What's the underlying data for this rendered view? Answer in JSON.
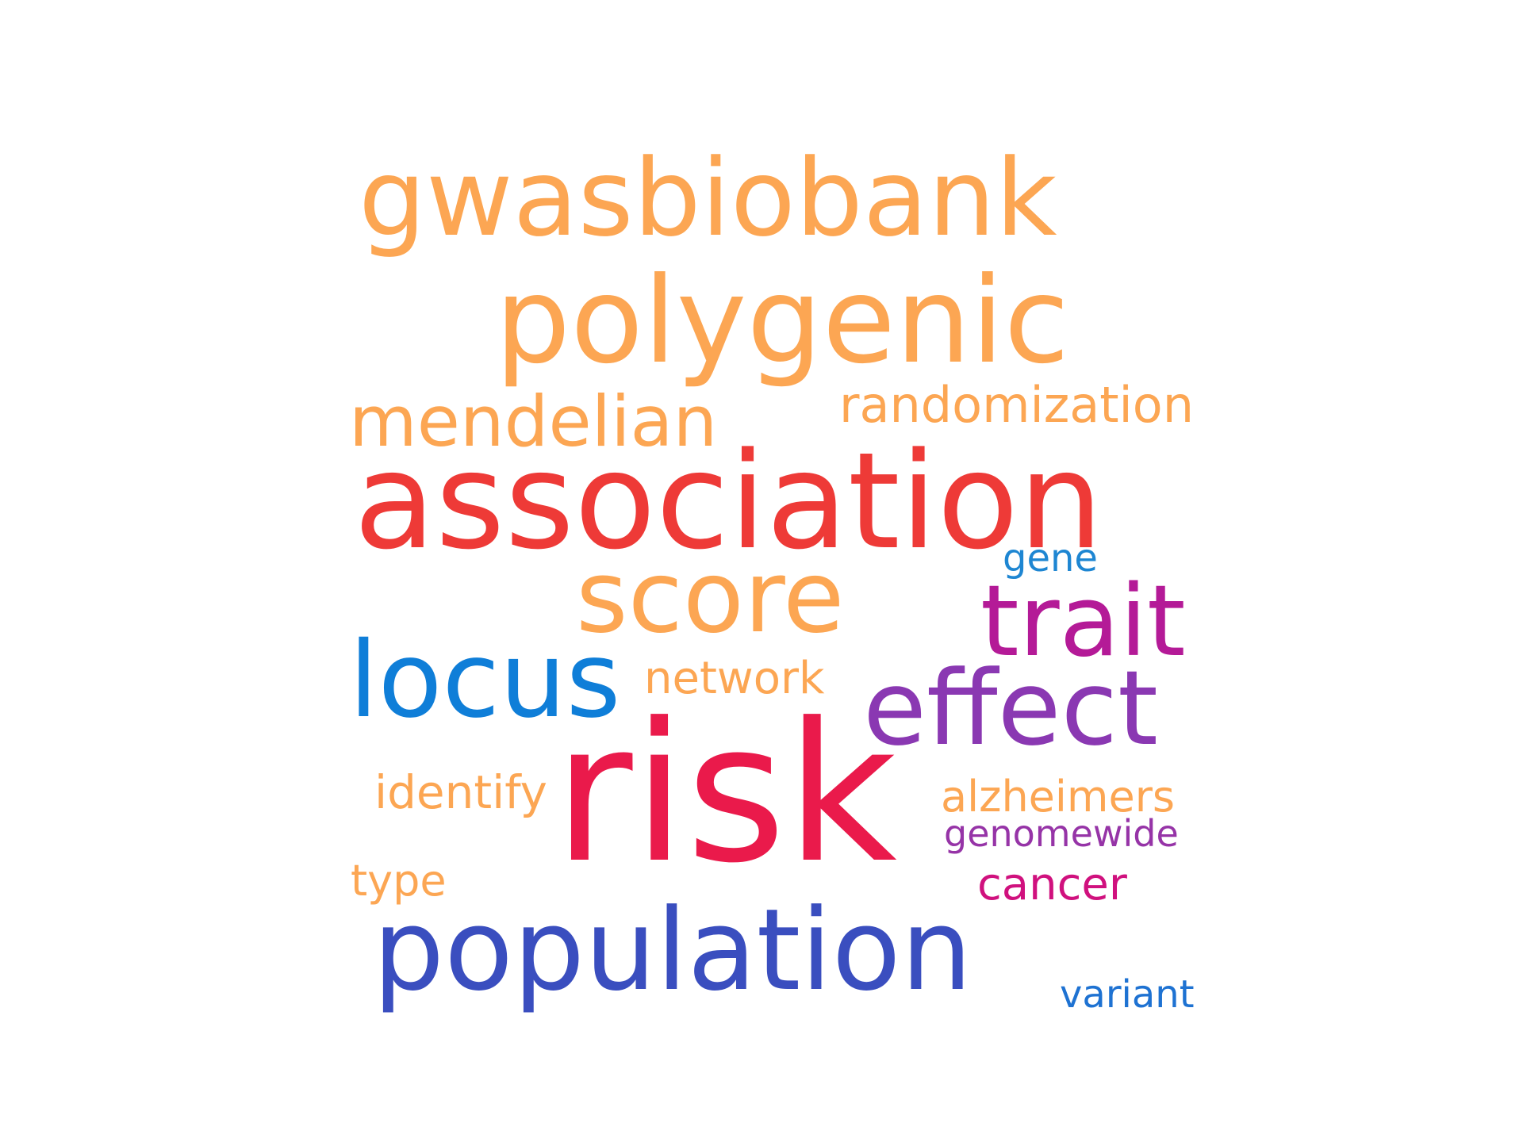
{
  "words": [
    {
      "id": "gwasbiobank",
      "text": "gwasbiobank",
      "color": "#fca653"
    },
    {
      "id": "polygenic",
      "text": "polygenic",
      "color": "#fca653"
    },
    {
      "id": "mendelian",
      "text": "mendelian",
      "color": "#fca653"
    },
    {
      "id": "randomization",
      "text": "randomization",
      "color": "#fca653"
    },
    {
      "id": "association",
      "text": "association",
      "color": "#ee3a37"
    },
    {
      "id": "gene",
      "text": "gene",
      "color": "#1e86d2"
    },
    {
      "id": "score",
      "text": "score",
      "color": "#fca653"
    },
    {
      "id": "trait",
      "text": "trait",
      "color": "#b41a97"
    },
    {
      "id": "locus",
      "text": "locus",
      "color": "#0f7ed8"
    },
    {
      "id": "network",
      "text": "network",
      "color": "#fca653"
    },
    {
      "id": "effect",
      "text": "effect",
      "color": "#8a38b2"
    },
    {
      "id": "risk",
      "text": "risk",
      "color": "#ea1a4b"
    },
    {
      "id": "identify",
      "text": "identify",
      "color": "#fca653"
    },
    {
      "id": "alzheimers",
      "text": "alzheimers",
      "color": "#fca653"
    },
    {
      "id": "genomewide",
      "text": "genomewide",
      "color": "#9634a7"
    },
    {
      "id": "type",
      "text": "type",
      "color": "#fca653"
    },
    {
      "id": "cancer",
      "text": "cancer",
      "color": "#d0117e"
    },
    {
      "id": "population",
      "text": "population",
      "color": "#3a4ebf"
    },
    {
      "id": "variant",
      "text": "variant",
      "color": "#1e72d2"
    }
  ]
}
